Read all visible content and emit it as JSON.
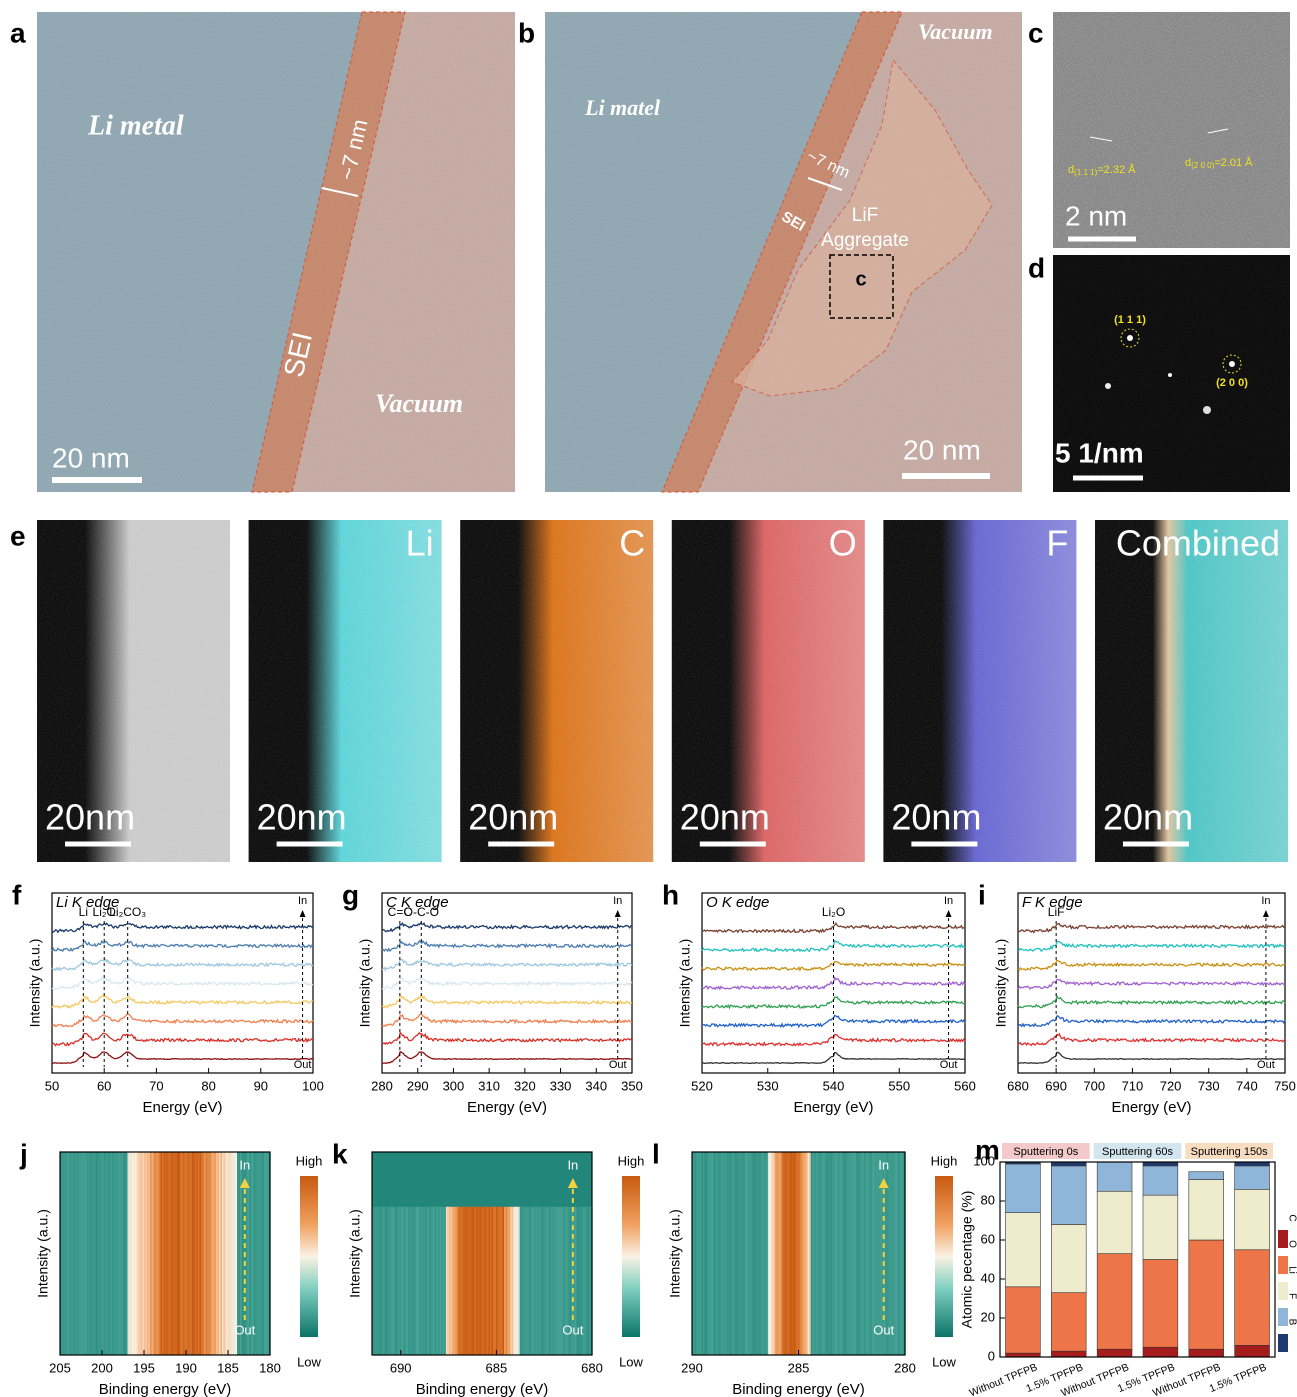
{
  "images": {
    "a": {
      "label": "a",
      "region_left": "Li metal",
      "thickness": "~7 nm",
      "layer": "SEI",
      "region_right": "Vacuum",
      "scale_bar": "20 nm"
    },
    "b": {
      "label": "b",
      "region_left": "Li matel",
      "region_right": "Vacuum",
      "thickness": "~7 nm",
      "layer": "SEI",
      "aggregate": [
        "LiF",
        "Aggregate"
      ],
      "box": "c",
      "scale_bar": "20 nm"
    },
    "c": {
      "label": "c",
      "spacings": [
        {
          "d": "d",
          "plane": "(1 1 1)",
          "text": "=2.32 Å"
        },
        {
          "d": "d",
          "plane": "(2 0 0)",
          "text": "=2.01 Å"
        }
      ],
      "scale_bar": "2 nm"
    },
    "d": {
      "label": "d",
      "spots": [
        "(1 1 1)",
        "(2 0 0)"
      ],
      "scale_bar": "5 1/nm"
    },
    "e": {
      "label": "e",
      "tiles": [
        {
          "color": "#cfcfcf"
        },
        {
          "label": "Li",
          "color": "#58d8dc"
        },
        {
          "label": "C",
          "color": "#e07010"
        },
        {
          "label": "O",
          "color": "#e06060"
        },
        {
          "label": "F",
          "color": "#6262d6"
        },
        {
          "label": "Combined",
          "color": "#48c8c8"
        }
      ],
      "scale_bar": "20nm"
    }
  },
  "chart_data": [
    {
      "type": "line",
      "panel": "f",
      "title": "Li K edge",
      "xlabel": "Energy (eV)",
      "ylabel": "Intensity (a.u.)",
      "xlim": [
        50,
        100
      ],
      "xticks": [
        50,
        60,
        70,
        80,
        90,
        100
      ],
      "markers": [
        {
          "value": 56,
          "label": "Li"
        },
        {
          "value": 60,
          "label": "Li₂O"
        },
        {
          "value": 64.5,
          "label": "Li₂CO₃"
        }
      ],
      "in_out": {
        "value": 98,
        "in": "In",
        "out": "Out"
      },
      "colors": [
        "#8b1010",
        "#d73027",
        "#f08050",
        "#f6c860",
        "#d8e8f0",
        "#9ec8e0",
        "#4a7cb0",
        "#1a3a6a"
      ]
    },
    {
      "type": "line",
      "panel": "g",
      "title": "C K edge",
      "xlabel": "Energy (eV)",
      "ylabel": "Intensity (a.u.)",
      "xlim": [
        280,
        350
      ],
      "xticks": [
        280,
        290,
        300,
        310,
        320,
        330,
        340,
        350
      ],
      "markers": [
        {
          "value": 285,
          "label": "C=C"
        },
        {
          "value": 291,
          "label": "O-C-O"
        }
      ],
      "in_out": {
        "value": 346,
        "in": "In",
        "out": "Out"
      },
      "colors": [
        "#8b1010",
        "#d73027",
        "#f08050",
        "#f6c860",
        "#d8e8f0",
        "#9ec8e0",
        "#4a7cb0",
        "#1a3a6a"
      ]
    },
    {
      "type": "line",
      "panel": "h",
      "title": "O K edge",
      "xlabel": "Energy (eV)",
      "ylabel": "Intensity (a.u.)",
      "xlim": [
        520,
        560
      ],
      "xticks": [
        520,
        530,
        540,
        550,
        560
      ],
      "markers": [
        {
          "value": 540,
          "label": "Li₂O"
        }
      ],
      "in_out": {
        "value": 557.5,
        "in": "In",
        "out": "Out"
      },
      "colors": [
        "#333333",
        "#e03030",
        "#2060c8",
        "#30a050",
        "#a060d0",
        "#c89010",
        "#20c0c0",
        "#7a4030"
      ]
    },
    {
      "type": "line",
      "panel": "i",
      "title": "F K edge",
      "xlabel": "Energy (eV)",
      "ylabel": "Intensity (a.u.)",
      "xlim": [
        680,
        750
      ],
      "xticks": [
        680,
        690,
        700,
        710,
        720,
        730,
        740,
        750
      ],
      "markers": [
        {
          "value": 690,
          "label": "LiF"
        }
      ],
      "in_out": {
        "value": 745,
        "in": "In",
        "out": "Out"
      },
      "colors": [
        "#333333",
        "#e03030",
        "#2060c8",
        "#30a050",
        "#a060d0",
        "#c89010",
        "#20c0c0",
        "#7a4030"
      ]
    },
    {
      "type": "heatmap",
      "panel": "j",
      "xlabel": "Binding energy (eV)",
      "ylabel": "Intensity (a.u.)",
      "xlim": [
        205,
        180
      ],
      "xticks": [
        205,
        200,
        195,
        190,
        185,
        180
      ],
      "peak_range": [
        193,
        188
      ],
      "spread_range": [
        197,
        184
      ],
      "in_out": {
        "value": 183,
        "in": "In",
        "out": "Out"
      },
      "colorbar": {
        "high": "High",
        "low": "Low"
      }
    },
    {
      "type": "heatmap",
      "panel": "k",
      "xlabel": "Binding energy (eV)",
      "ylabel": "Intensity (a.u.)",
      "xlim": [
        691.5,
        680
      ],
      "xticks": [
        690,
        685,
        680
      ],
      "peak_range": [
        687,
        684.6
      ],
      "spread_range": [
        687.6,
        683.8
      ],
      "in_out": {
        "value": 681,
        "in": "In",
        "out": "Out"
      },
      "colorbar": {
        "high": "High",
        "low": "Low"
      }
    },
    {
      "type": "heatmap",
      "panel": "l",
      "xlabel": "Binding energy (eV)",
      "ylabel": "Intensity (a.u.)",
      "xlim": [
        290,
        280
      ],
      "xticks": [
        290,
        285,
        280
      ],
      "peak_range": [
        285.8,
        284.9
      ],
      "spread_range": [
        286.4,
        284.4
      ],
      "in_out": {
        "value": 281,
        "in": "In",
        "out": "Out"
      },
      "colorbar": {
        "high": "High",
        "low": "Low"
      }
    },
    {
      "type": "stacked_bar",
      "panel": "m",
      "ylabel": "Atomic pecentage (%)",
      "ylim": [
        0,
        100
      ],
      "yticks": [
        0,
        20,
        40,
        60,
        80,
        100
      ],
      "groups": [
        {
          "name": "Sputtering 0s",
          "color": "#f4c9c9"
        },
        {
          "name": "Sputtering 60s",
          "color": "#d3e5ee"
        },
        {
          "name": "Sputtering 150s",
          "color": "#f8dcc0"
        }
      ],
      "categories": [
        "Without TPFPB",
        "1.5% TPFPB",
        "Without TPFPB",
        "1.5% TPFPB",
        "Without TPFPB",
        "1.5% TPFPB"
      ],
      "series": [
        {
          "name": "C",
          "color": "#a51c1c",
          "values": [
            2,
            3,
            4,
            5,
            4,
            6
          ]
        },
        {
          "name": "O",
          "color": "#ee7548",
          "values": [
            34,
            30,
            49,
            45,
            56,
            49
          ]
        },
        {
          "name": "Li",
          "color": "#efebcd",
          "values": [
            38,
            35,
            32,
            33,
            31,
            31
          ]
        },
        {
          "name": "F",
          "color": "#8fb6d9",
          "values": [
            25,
            30,
            15,
            15,
            4,
            12
          ]
        },
        {
          "name": "B",
          "color": "#1f3a6e",
          "values": [
            1,
            2,
            0,
            2,
            0,
            2
          ]
        }
      ]
    }
  ]
}
